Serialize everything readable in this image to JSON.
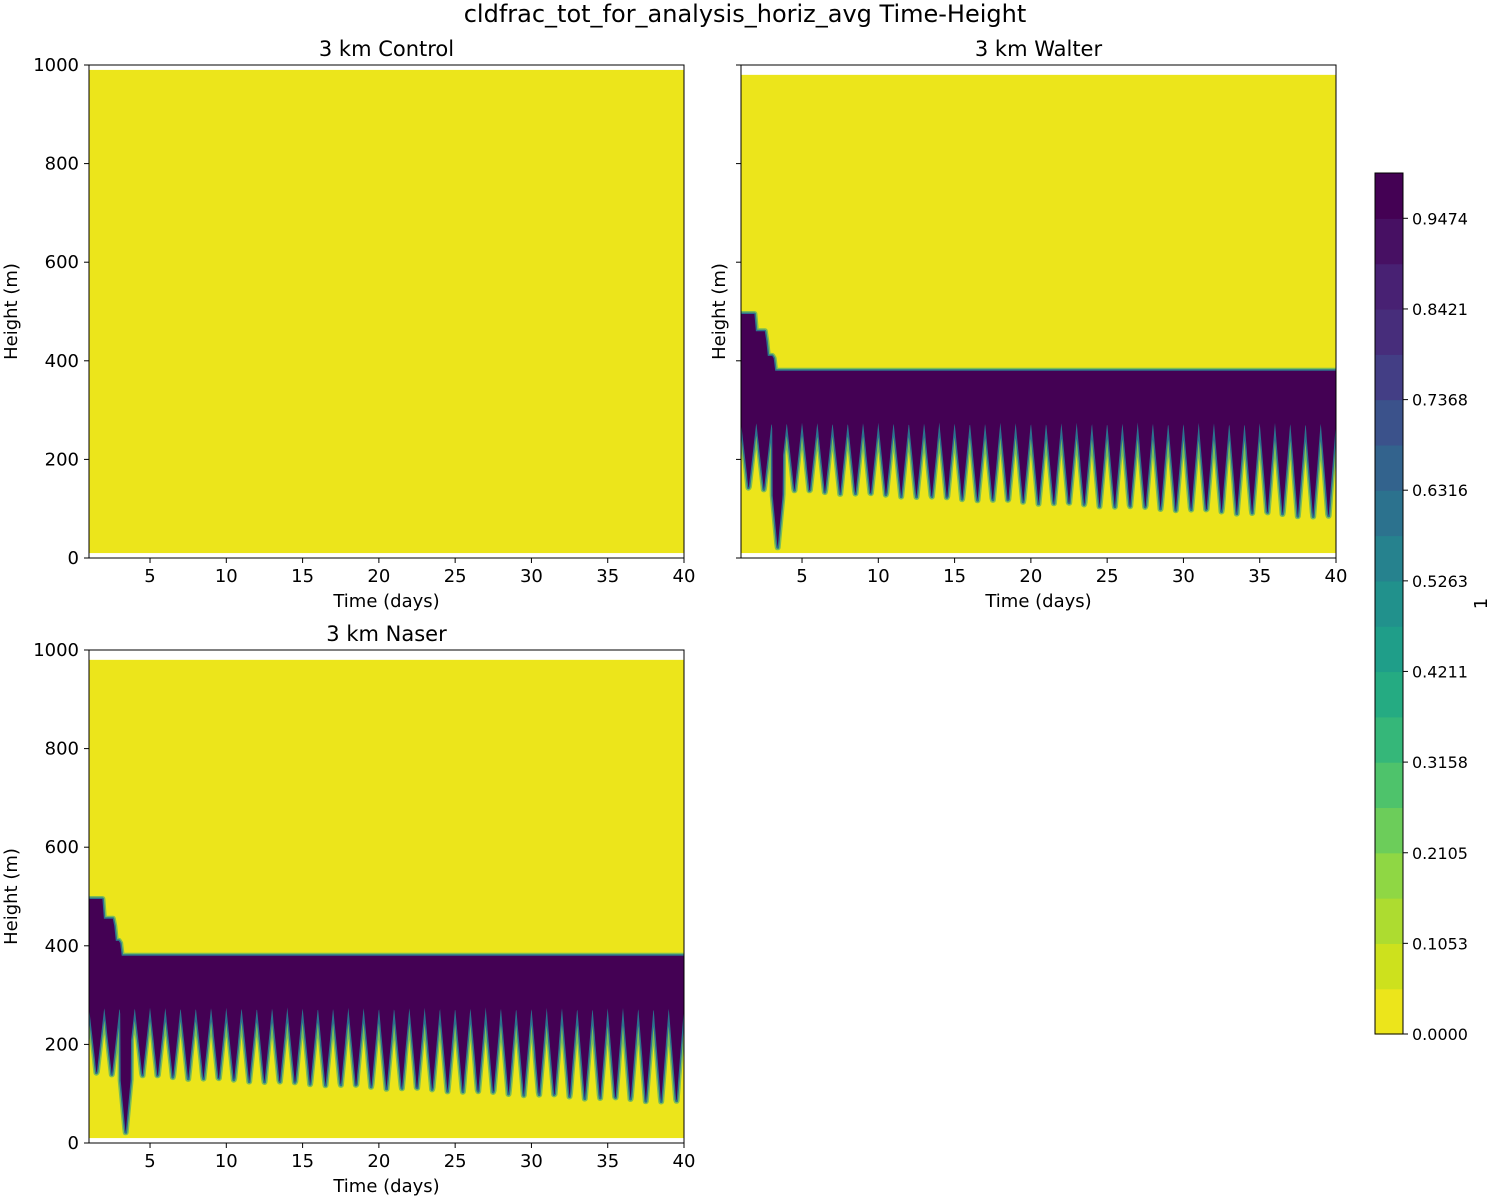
{
  "figure": {
    "suptitle": "cldfrac_tot_for_analysis_horiz_avg Time-Height"
  },
  "chart_data": [
    {
      "type": "heatmap",
      "title": "3 km Control",
      "xlabel": "Time (days)",
      "ylabel": "Height (m)",
      "xlim": [
        1,
        40
      ],
      "ylim": [
        0,
        1000
      ],
      "xticks": [
        "5",
        "10",
        "15",
        "20",
        "25",
        "30",
        "35",
        "40"
      ],
      "yticks": [
        "0",
        "200",
        "400",
        "600",
        "800",
        "1000"
      ],
      "show_ytick_labels": true,
      "field": {
        "top": 990,
        "bottom": 10,
        "value": 0.0
      },
      "cloud": null
    },
    {
      "type": "heatmap",
      "title": "3 km Walter",
      "xlabel": "Time (days)",
      "ylabel": "Height (m)",
      "xlim": [
        1,
        40
      ],
      "ylim": [
        0,
        1000
      ],
      "xticks": [
        "5",
        "10",
        "15",
        "20",
        "25",
        "30",
        "35",
        "40"
      ],
      "yticks": [
        "0",
        "200",
        "400",
        "600",
        "800",
        "1000"
      ],
      "show_ytick_labels": false,
      "field": {
        "top": 980,
        "bottom": 10,
        "value": 0.0
      },
      "cloud": {
        "top_profile": [
          [
            1.0,
            495
          ],
          [
            1.8,
            495
          ],
          [
            1.9,
            460
          ],
          [
            2.6,
            440
          ],
          [
            2.7,
            410
          ],
          [
            3.1,
            405
          ],
          [
            3.2,
            380
          ],
          [
            40,
            380
          ]
        ],
        "base_peak": 275,
        "base_trough_start": 140,
        "base_trough_end": 80,
        "dip_day": 3.4,
        "dip_height": 20,
        "period_days": 1.0,
        "value": 1.0
      }
    },
    {
      "type": "heatmap",
      "title": "3 km Naser",
      "xlabel": "Time (days)",
      "ylabel": "Height (m)",
      "xlim": [
        1,
        40
      ],
      "ylim": [
        0,
        1000
      ],
      "xticks": [
        "5",
        "10",
        "15",
        "20",
        "25",
        "30",
        "35",
        "40"
      ],
      "yticks": [
        "0",
        "200",
        "400",
        "600",
        "800",
        "1000"
      ],
      "show_ytick_labels": true,
      "field": {
        "top": 980,
        "bottom": 10,
        "value": 0.0
      },
      "cloud": {
        "top_profile": [
          [
            1.0,
            495
          ],
          [
            1.8,
            495
          ],
          [
            1.9,
            455
          ],
          [
            2.6,
            440
          ],
          [
            2.7,
            410
          ],
          [
            3.0,
            405
          ],
          [
            3.1,
            380
          ],
          [
            40,
            380
          ]
        ],
        "base_peak": 275,
        "base_trough_start": 140,
        "base_trough_end": 80,
        "dip_day": 3.4,
        "dip_height": 20,
        "period_days": 1.0,
        "value": 1.0
      }
    }
  ],
  "colorbar": {
    "label": "1",
    "vmin": 0.0,
    "vmax": 1.0,
    "levels": 19,
    "tick_values": [
      0.0,
      0.1053,
      0.2105,
      0.3158,
      0.4211,
      0.5263,
      0.6316,
      0.7368,
      0.8421,
      0.9474
    ],
    "tick_labels": [
      "0.0000",
      "0.1053",
      "0.2105",
      "0.3158",
      "0.4211",
      "0.5263",
      "0.6316",
      "0.7368",
      "0.8421",
      "0.9474"
    ],
    "colors": [
      "#ece51b",
      "#cde11d",
      "#addc30",
      "#8fd744",
      "#6ccd5a",
      "#4ec36b",
      "#35b779",
      "#25ab82",
      "#1f9e89",
      "#21918c",
      "#26828e",
      "#2c728e",
      "#33638d",
      "#3b528b",
      "#433e85",
      "#472d7b",
      "#482173",
      "#471063",
      "#440154"
    ]
  }
}
